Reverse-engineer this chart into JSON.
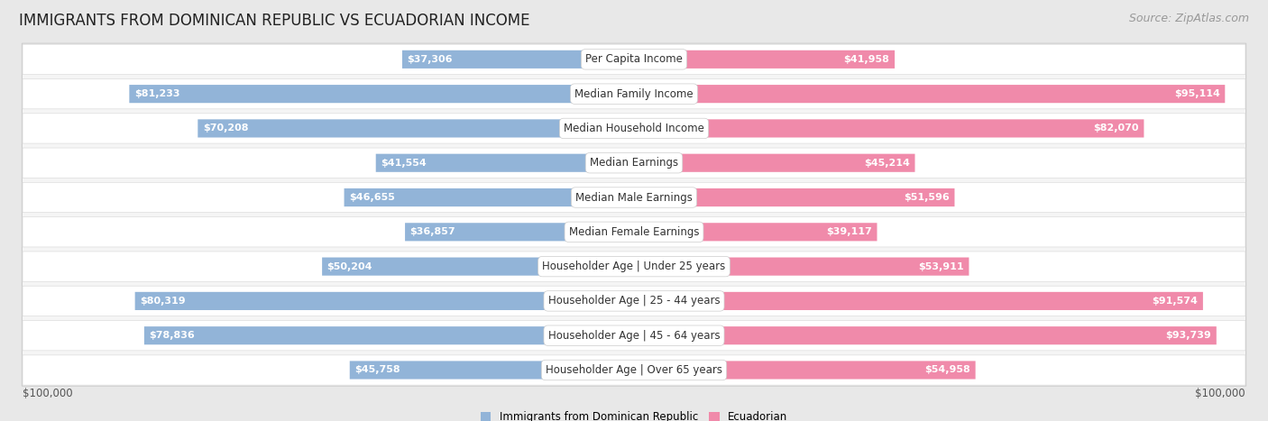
{
  "title": "IMMIGRANTS FROM DOMINICAN REPUBLIC VS ECUADORIAN INCOME",
  "source": "Source: ZipAtlas.com",
  "categories": [
    "Per Capita Income",
    "Median Family Income",
    "Median Household Income",
    "Median Earnings",
    "Median Male Earnings",
    "Median Female Earnings",
    "Householder Age | Under 25 years",
    "Householder Age | 25 - 44 years",
    "Householder Age | 45 - 64 years",
    "Householder Age | Over 65 years"
  ],
  "dominican_values": [
    37306,
    81233,
    70208,
    41554,
    46655,
    36857,
    50204,
    80319,
    78836,
    45758
  ],
  "ecuadorian_values": [
    41958,
    95114,
    82070,
    45214,
    51596,
    39117,
    53911,
    91574,
    93739,
    54958
  ],
  "dominican_labels": [
    "$37,306",
    "$81,233",
    "$70,208",
    "$41,554",
    "$46,655",
    "$36,857",
    "$50,204",
    "$80,319",
    "$78,836",
    "$45,758"
  ],
  "ecuadorian_labels": [
    "$41,958",
    "$95,114",
    "$82,070",
    "$45,214",
    "$51,596",
    "$39,117",
    "$53,911",
    "$91,574",
    "$93,739",
    "$54,958"
  ],
  "dominican_color": "#92b4d8",
  "ecuadorian_color": "#f08aaa",
  "background_color": "#e8e8e8",
  "row_background": "#ffffff",
  "row_border_color": "#d0d0d0",
  "max_value": 100000,
  "legend_dominican": "Immigrants from Dominican Republic",
  "legend_ecuadorian": "Ecuadorian",
  "xlabel_left": "$100,000",
  "xlabel_right": "$100,000",
  "title_fontsize": 12,
  "source_fontsize": 9,
  "label_fontsize": 8,
  "category_fontsize": 8.5,
  "bar_height": 0.52,
  "inner_label_threshold": 0.28
}
